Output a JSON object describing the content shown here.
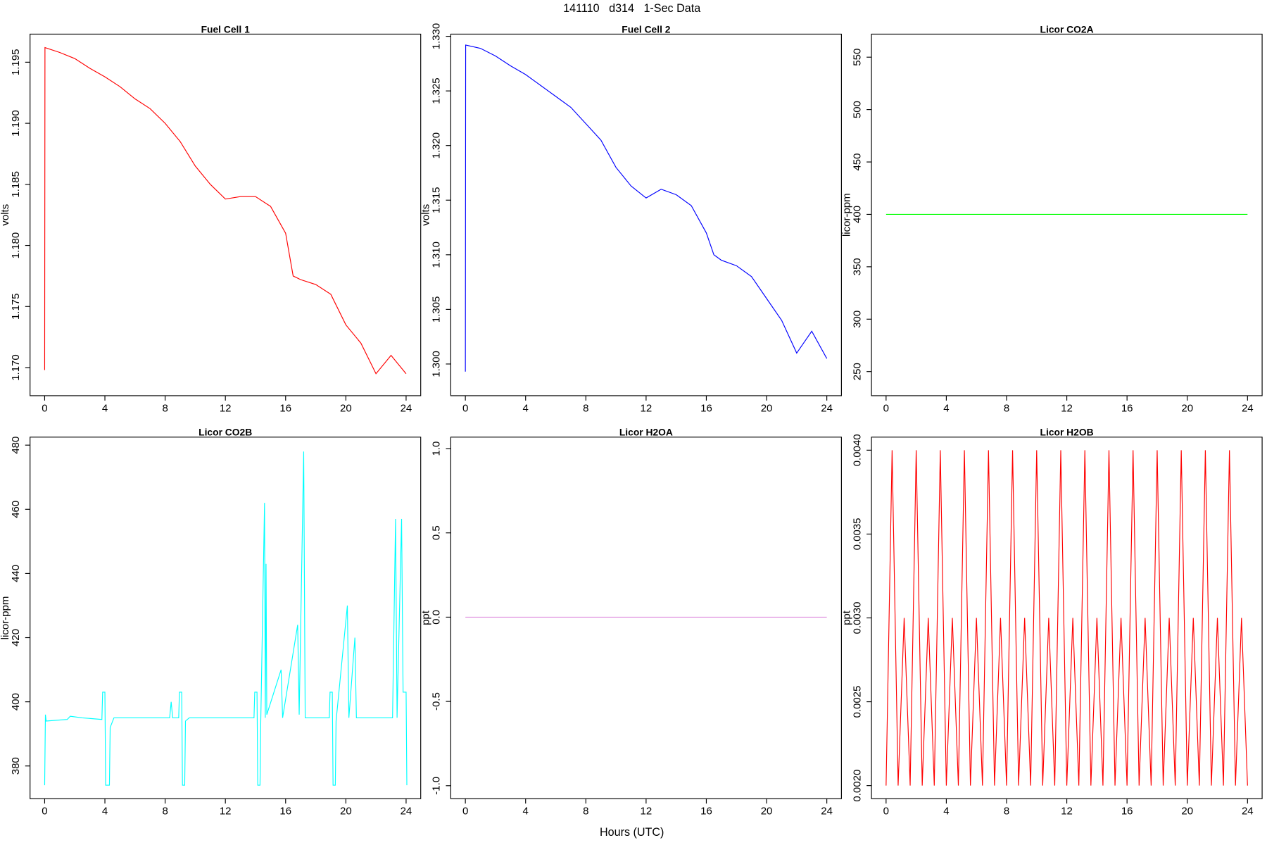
{
  "title": "141110   d314   1-Sec Data",
  "xlabel": "Hours (UTC)",
  "chart_data": [
    {
      "type": "line",
      "title": "Fuel Cell 1",
      "ylabel": "volts",
      "color": "#ff0000",
      "x": [
        0,
        0.02,
        1,
        2,
        3,
        4,
        5,
        6,
        7,
        8,
        9,
        10,
        11,
        12,
        13,
        14,
        15,
        16,
        16.5,
        17,
        18,
        19,
        20,
        21,
        22,
        23,
        24
      ],
      "values": [
        1.1698,
        1.1962,
        1.1958,
        1.1953,
        1.1945,
        1.1938,
        1.193,
        1.192,
        1.1912,
        1.19,
        1.1885,
        1.1865,
        1.185,
        1.1838,
        1.184,
        1.184,
        1.1832,
        1.181,
        1.1775,
        1.1772,
        1.1768,
        1.176,
        1.1735,
        1.172,
        1.1695,
        1.171,
        1.1695
      ],
      "xlim": [
        -0.97,
        24.97
      ],
      "xticks": [
        0,
        4,
        8,
        12,
        16,
        20,
        24
      ],
      "ylim": [
        1.1677,
        1.1973
      ],
      "yticks": [
        {
          "value": 1.17,
          "label": "1.170"
        },
        1.175,
        {
          "value": 1.18,
          "label": "1.180"
        },
        1.185,
        {
          "value": 1.19,
          "label": "1.190"
        },
        1.195
      ]
    },
    {
      "type": "line",
      "title": "Fuel Cell 2",
      "ylabel": "volts",
      "color": "#0000ff",
      "x": [
        0,
        0.02,
        1,
        2,
        3,
        4,
        5,
        6,
        7,
        8,
        9,
        10,
        11,
        12,
        13,
        14,
        15,
        16,
        16.5,
        17,
        18,
        19,
        20,
        21,
        22,
        23,
        24
      ],
      "values": [
        1.2993,
        1.3292,
        1.3289,
        1.3282,
        1.3273,
        1.3265,
        1.3255,
        1.3245,
        1.3235,
        1.322,
        1.3205,
        1.318,
        1.3163,
        1.3152,
        1.316,
        1.3155,
        1.3145,
        1.312,
        1.31,
        1.3095,
        1.309,
        1.308,
        1.306,
        1.304,
        1.301,
        1.303,
        1.3005
      ],
      "xlim": [
        -0.97,
        24.97
      ],
      "xticks": [
        0,
        4,
        8,
        12,
        16,
        20,
        24
      ],
      "ylim": [
        1.2971,
        1.3302
      ],
      "yticks": [
        {
          "value": 1.3,
          "label": "1.300"
        },
        1.305,
        {
          "value": 1.31,
          "label": "1.310"
        },
        1.315,
        {
          "value": 1.32,
          "label": "1.320"
        },
        1.325,
        {
          "value": 1.33,
          "label": "1.330"
        }
      ]
    },
    {
      "type": "line",
      "title": "Licor CO2A",
      "ylabel": "licor-ppm",
      "color": "#00ff00",
      "x": [
        0,
        24
      ],
      "values": [
        400,
        400
      ],
      "xlim": [
        -0.97,
        24.97
      ],
      "xticks": [
        0,
        4,
        8,
        12,
        16,
        20,
        24
      ],
      "ylim": [
        227,
        572
      ],
      "yticks": [
        250,
        300,
        350,
        400,
        450,
        500,
        550
      ]
    },
    {
      "type": "line",
      "title": "Licor CO2B",
      "ylabel": "licor-ppm",
      "color": "#00ffff",
      "x": [
        0,
        0.05,
        0.1,
        1.5,
        1.7,
        2.5,
        3.8,
        3.85,
        4.0,
        4.05,
        4.3,
        4.35,
        4.6,
        8.3,
        8.4,
        8.5,
        8.9,
        8.95,
        9.1,
        9.15,
        9.3,
        9.35,
        9.6,
        13.9,
        13.95,
        14.1,
        14.15,
        14.3,
        14.35,
        14.6,
        14.65,
        14.7,
        14.75,
        15.7,
        15.8,
        16.8,
        16.9,
        17.2,
        17.3,
        18.9,
        18.95,
        19.1,
        19.15,
        19.3,
        19.35,
        20.1,
        20.2,
        20.6,
        20.7,
        23.1,
        23.3,
        23.4,
        23.7,
        23.8,
        24.0,
        24.05
      ],
      "values": [
        374,
        396,
        394,
        394.5,
        395.5,
        395,
        394.5,
        403,
        403,
        374,
        374,
        392,
        395,
        395,
        400,
        395,
        395,
        403,
        403,
        374,
        374,
        394,
        395,
        395,
        403,
        403,
        374,
        374,
        394,
        462,
        395,
        443,
        396,
        410,
        395,
        424,
        396,
        478,
        395,
        395,
        403,
        403,
        374,
        374,
        394,
        430,
        395,
        420,
        395,
        395,
        457,
        395,
        457,
        403,
        403,
        374
      ],
      "xlim": [
        -0.97,
        24.97
      ],
      "xticks": [
        0,
        4,
        8,
        12,
        16,
        20,
        24
      ],
      "ylim": [
        369.8,
        482.5
      ],
      "yticks": [
        380,
        400,
        420,
        440,
        460,
        480
      ]
    },
    {
      "type": "line",
      "title": "Licor H2OA",
      "ylabel": "ppt",
      "color": "#dd88dd",
      "x": [
        0,
        24
      ],
      "values": [
        0,
        0
      ],
      "xlim": [
        -0.97,
        24.97
      ],
      "xticks": [
        0,
        4,
        8,
        12,
        16,
        20,
        24
      ],
      "ylim": [
        -1.077,
        1.068
      ],
      "yticks": [
        {
          "value": -1,
          "label": "-1.0"
        },
        -0.5,
        {
          "value": 0,
          "label": "0.0"
        },
        0.5,
        {
          "value": 1,
          "label": "1.0"
        }
      ]
    },
    {
      "type": "line",
      "title": "Licor H2OB",
      "ylabel": "ppt",
      "color": "#ff0000",
      "x": [
        0,
        0.4,
        0.8,
        1.2,
        1.6,
        2,
        2.4,
        2.8,
        3.2,
        3.6,
        4,
        4.4,
        4.8,
        5.2,
        5.6,
        6,
        6.4,
        6.8,
        7.2,
        7.6,
        8,
        8.4,
        8.8,
        9.2,
        9.6,
        10,
        10.4,
        10.8,
        11.2,
        11.6,
        12,
        12.4,
        12.8,
        13.2,
        13.6,
        14,
        14.4,
        14.8,
        15.2,
        15.6,
        16,
        16.4,
        16.8,
        17.2,
        17.6,
        18,
        18.4,
        18.8,
        19.2,
        19.6,
        20,
        20.4,
        20.8,
        21.2,
        21.6,
        22,
        22.4,
        22.8,
        23.2,
        23.6,
        24
      ],
      "values": [
        0.002,
        0.004,
        0.002,
        0.003,
        0.002,
        0.004,
        0.002,
        0.003,
        0.002,
        0.004,
        0.002,
        0.003,
        0.002,
        0.004,
        0.002,
        0.003,
        0.002,
        0.004,
        0.002,
        0.003,
        0.002,
        0.004,
        0.002,
        0.003,
        0.002,
        0.004,
        0.002,
        0.003,
        0.002,
        0.004,
        0.002,
        0.003,
        0.002,
        0.004,
        0.002,
        0.003,
        0.002,
        0.004,
        0.002,
        0.003,
        0.002,
        0.004,
        0.002,
        0.003,
        0.002,
        0.004,
        0.002,
        0.003,
        0.002,
        0.004,
        0.002,
        0.003,
        0.002,
        0.004,
        0.002,
        0.003,
        0.002,
        0.004,
        0.002,
        0.003,
        0.002
      ],
      "xlim": [
        -0.97,
        24.97
      ],
      "xticks": [
        0,
        4,
        8,
        12,
        16,
        20,
        24
      ],
      "ylim": [
        0.001922,
        0.004078
      ],
      "yticks": [
        {
          "value": 0.002,
          "label": "0.0020"
        },
        {
          "value": 0.0025,
          "label": "0.0025"
        },
        {
          "value": 0.003,
          "label": "0.0030"
        },
        {
          "value": 0.0035,
          "label": "0.0035"
        },
        {
          "value": 0.004,
          "label": "0.0040"
        }
      ]
    }
  ]
}
